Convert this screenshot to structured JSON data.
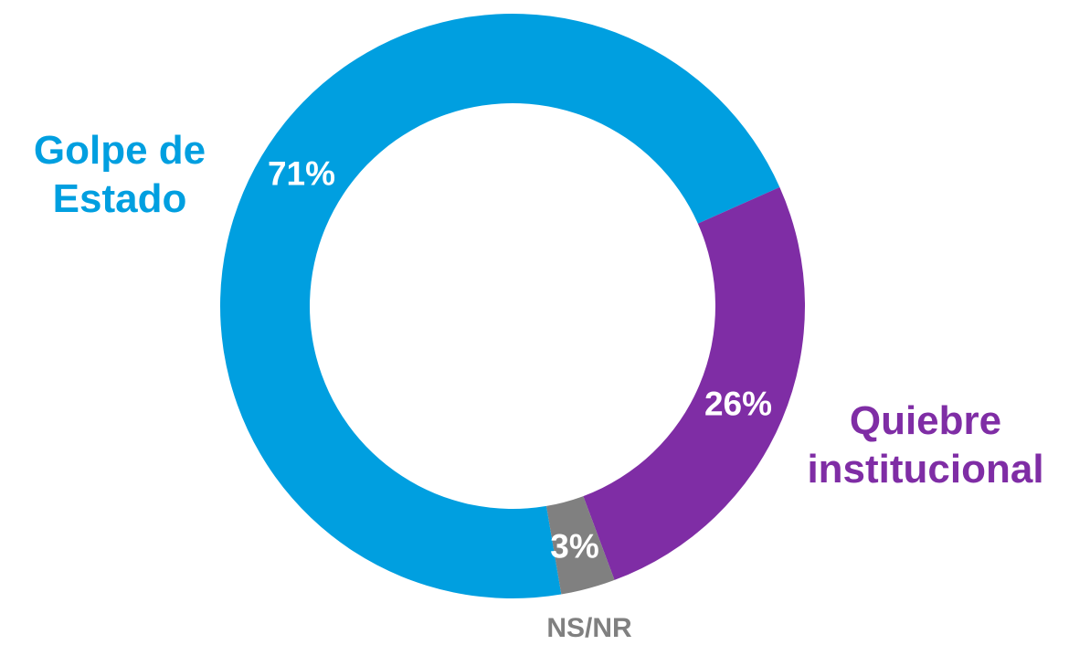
{
  "chart_data": {
    "type": "donut",
    "categories": [
      "Golpe de Estado",
      "Quiebre institucional",
      "NS/NR"
    ],
    "values": [
      71,
      26,
      3
    ],
    "value_labels": [
      "71%",
      "26%",
      "3%"
    ],
    "colors": [
      "#009fe0",
      "#7f2da5",
      "#808080"
    ]
  }
}
